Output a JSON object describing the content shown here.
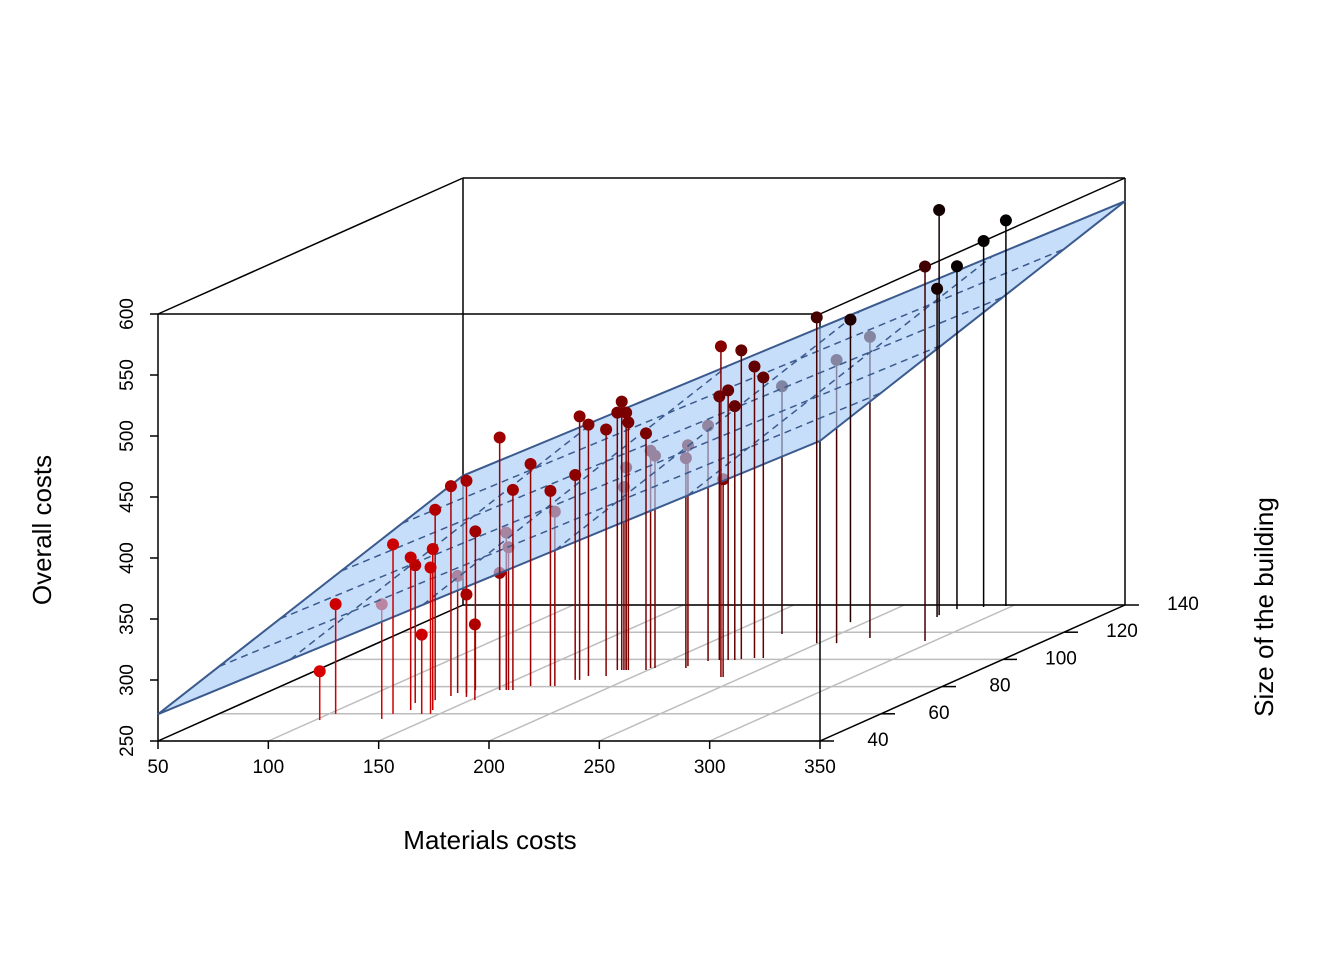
{
  "chart_data": {
    "type": "scatter3d",
    "xlabel": "Materials costs",
    "ylabel": "Size of the building",
    "zlabel": "Overall costs",
    "xlim": [
      50,
      350
    ],
    "xticks": [
      50,
      100,
      150,
      200,
      250,
      300,
      350
    ],
    "ylim": [
      40,
      140
    ],
    "yticks": [
      40,
      60,
      80,
      100,
      120,
      140
    ],
    "zlim": [
      250,
      600
    ],
    "zticks": [
      250,
      300,
      350,
      400,
      450,
      500,
      550,
      600
    ],
    "grid": true,
    "colors": {
      "front": "#ff0000",
      "back": "#000000",
      "surface": "#a9cdf7",
      "surface_edge": "#3b5b8e"
    },
    "surface": {
      "z": [
        [
          272,
          356
        ],
        [
          496,
          581
        ]
      ]
    },
    "x": [
      102,
      103,
      129,
      129,
      142,
      133,
      128,
      146,
      143,
      134,
      137,
      141,
      137,
      145,
      152,
      142,
      153,
      153,
      156,
      157,
      159,
      163,
      172,
      174,
      177,
      179,
      179,
      187,
      186,
      188,
      190,
      189,
      190,
      191,
      199,
      199,
      201,
      215,
      214,
      218,
      240,
      241,
      222,
      226,
      229,
      231,
      236,
      240,
      224,
      249,
      258,
      243,
      268,
      296,
      277,
      276,
      278,
      288,
      297
    ],
    "y": [
      55.4,
      59.9,
      56.2,
      59.9,
      59.9,
      62.8,
      67.9,
      59.9,
      62.8,
      70.1,
      73.1,
      75.3,
      75.3,
      72.4,
      70.1,
      77.5,
      77.5,
      77.5,
      77.5,
      77.5,
      77.5,
      80.4,
      80.4,
      80.4,
      84.9,
      84.9,
      87.8,
      87.8,
      92.2,
      92.2,
      92.2,
      92.2,
      92.2,
      92.2,
      92.2,
      93.7,
      93.7,
      93.7,
      95.1,
      98.8,
      87.1,
      87.1,
      99.6,
      99.6,
      99.6,
      100.3,
      101,
      101,
      118.7,
      112,
      112,
      127.4,
      115.7,
      113.5,
      131.2,
      132.6,
      137,
      138.5,
      139.3
    ],
    "z": [
      290,
      340,
      344,
      389,
      315,
      375,
      363,
      370,
      382,
      406,
      422,
      424,
      346,
      334,
      312,
      380,
      346,
      457,
      379,
      367,
      414,
      432,
      410,
      393,
      418,
      466,
      456,
      452,
      461,
      470,
      461,
      400,
      416,
      453,
      444,
      428,
      424,
      422,
      431,
      443,
      521,
      412,
      466,
      471,
      458,
      503,
      489,
      480,
      453,
      517,
      482,
      498,
      497,
      557,
      519,
      582,
      531,
      550,
      566
    ]
  }
}
